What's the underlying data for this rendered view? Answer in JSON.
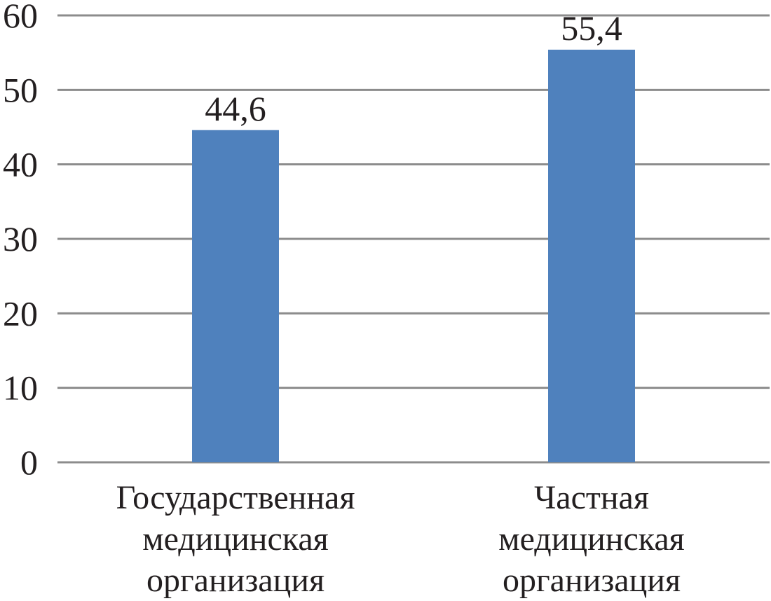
{
  "chart_data": {
    "type": "bar",
    "title": "",
    "xlabel": "",
    "ylabel": "",
    "categories": [
      [
        "Государственная",
        "медицинская",
        "организация"
      ],
      [
        "Частная",
        "медицинская",
        "организация"
      ]
    ],
    "values": [
      44.6,
      55.4
    ],
    "value_labels": [
      "44,6",
      "55,4"
    ],
    "ylim": [
      0,
      60
    ],
    "yticks": [
      0,
      10,
      20,
      30,
      40,
      50,
      60
    ],
    "grid": true,
    "legend": "none",
    "bar_color": "#4f81bd"
  }
}
